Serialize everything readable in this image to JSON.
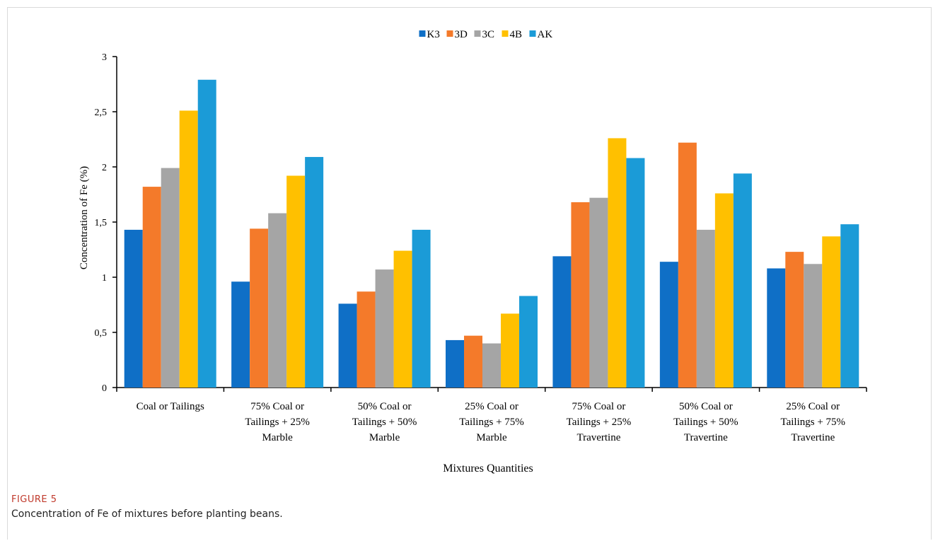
{
  "figure": {
    "label": "FIGURE 5",
    "caption": "Concentration of Fe of mixtures before planting beans."
  },
  "chart_data": {
    "type": "bar",
    "title": "",
    "xlabel": "Mixtures Quantities",
    "ylabel": "Concentration of Fe (%)",
    "ylim": [
      0,
      3
    ],
    "yticks": [
      0,
      0.5,
      1,
      1.5,
      2,
      2.5,
      3
    ],
    "ytick_labels": [
      "0",
      "0,5",
      "1",
      "1,5",
      "2",
      "2,5",
      "3"
    ],
    "grid": false,
    "legend_position": "top-center",
    "categories": [
      [
        "Coal or Tailings"
      ],
      [
        "75% Coal or",
        "Tailings  + 25%",
        "Marble"
      ],
      [
        "50% Coal or",
        "Tailings + 50%",
        "Marble"
      ],
      [
        "25% Coal or",
        "Tailings + 75%",
        "Marble"
      ],
      [
        "75% Coal or",
        "Tailings + 25%",
        "Travertine"
      ],
      [
        "50% Coal or",
        "Tailings + 50%",
        "Travertine"
      ],
      [
        "25% Coal or",
        "Tailings + 75%",
        "Travertine"
      ]
    ],
    "series": [
      {
        "name": "K3",
        "color": "#0F6FC6",
        "values": [
          1.43,
          0.96,
          0.76,
          0.43,
          1.19,
          1.14,
          1.08
        ]
      },
      {
        "name": "3D",
        "color": "#F47A2A",
        "values": [
          1.82,
          1.44,
          0.87,
          0.47,
          1.68,
          2.22,
          1.23
        ]
      },
      {
        "name": "3C",
        "color": "#A5A5A5",
        "values": [
          1.99,
          1.58,
          1.07,
          0.4,
          1.72,
          1.43,
          1.12
        ]
      },
      {
        "name": "4B",
        "color": "#FFC000",
        "values": [
          2.51,
          1.92,
          1.24,
          0.67,
          2.26,
          1.76,
          1.37
        ]
      },
      {
        "name": "AK",
        "color": "#1B9BD7",
        "values": [
          2.79,
          2.09,
          1.43,
          0.83,
          2.08,
          1.94,
          1.48
        ]
      }
    ]
  }
}
